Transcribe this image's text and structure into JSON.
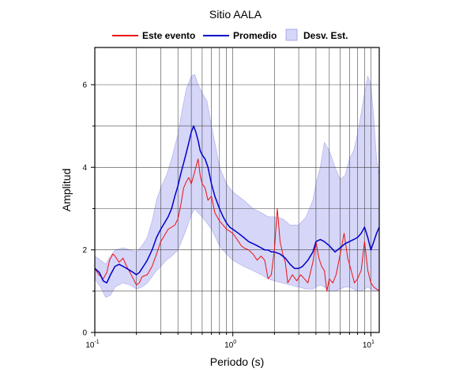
{
  "chart_data": {
    "type": "line",
    "title": "Sitio AALA",
    "xlabel": "Periodo (s)",
    "ylabel": "Amplitud",
    "x_scale": "log",
    "xlim": [
      0.1,
      11.5
    ],
    "ylim": [
      0,
      6.9
    ],
    "x_ticks": [
      {
        "value": 0.1,
        "base": "10",
        "exp": "-1"
      },
      {
        "value": 1,
        "base": "10",
        "exp": "0"
      },
      {
        "value": 10,
        "base": "10",
        "exp": "1"
      }
    ],
    "y_ticks": [
      0,
      2,
      4,
      6
    ],
    "grid": true,
    "legend_position": "top",
    "legend": [
      {
        "key": "event",
        "label": "Este evento",
        "kind": "line"
      },
      {
        "key": "mean",
        "label": "Promedio",
        "kind": "line"
      },
      {
        "key": "std",
        "label": "Desv. Est.",
        "kind": "box"
      }
    ],
    "colors": {
      "event": "#ee1111",
      "mean": "#0000cc",
      "std_fill": "#d6d6f9",
      "std_edge": "#9a9ae6"
    },
    "series": [
      {
        "key": "event",
        "points": [
          [
            0.1,
            1.55
          ],
          [
            0.107,
            1.4
          ],
          [
            0.115,
            1.3
          ],
          [
            0.122,
            1.45
          ],
          [
            0.128,
            1.75
          ],
          [
            0.135,
            1.9
          ],
          [
            0.14,
            1.85
          ],
          [
            0.15,
            1.7
          ],
          [
            0.16,
            1.8
          ],
          [
            0.17,
            1.6
          ],
          [
            0.18,
            1.45
          ],
          [
            0.19,
            1.3
          ],
          [
            0.2,
            1.15
          ],
          [
            0.21,
            1.2
          ],
          [
            0.22,
            1.35
          ],
          [
            0.24,
            1.4
          ],
          [
            0.26,
            1.6
          ],
          [
            0.28,
            1.9
          ],
          [
            0.3,
            2.2
          ],
          [
            0.32,
            2.35
          ],
          [
            0.34,
            2.5
          ],
          [
            0.36,
            2.55
          ],
          [
            0.38,
            2.6
          ],
          [
            0.4,
            2.75
          ],
          [
            0.42,
            3.1
          ],
          [
            0.44,
            3.5
          ],
          [
            0.46,
            3.65
          ],
          [
            0.48,
            3.75
          ],
          [
            0.5,
            3.6
          ],
          [
            0.52,
            3.8
          ],
          [
            0.54,
            4.0
          ],
          [
            0.56,
            4.2
          ],
          [
            0.58,
            3.8
          ],
          [
            0.6,
            3.6
          ],
          [
            0.63,
            3.5
          ],
          [
            0.66,
            3.2
          ],
          [
            0.7,
            3.3
          ],
          [
            0.74,
            2.9
          ],
          [
            0.8,
            2.7
          ],
          [
            0.85,
            2.6
          ],
          [
            0.9,
            2.5
          ],
          [
            0.95,
            2.45
          ],
          [
            1.0,
            2.4
          ],
          [
            1.05,
            2.3
          ],
          [
            1.1,
            2.2
          ],
          [
            1.15,
            2.1
          ],
          [
            1.2,
            2.05
          ],
          [
            1.3,
            2.0
          ],
          [
            1.4,
            1.9
          ],
          [
            1.5,
            1.75
          ],
          [
            1.6,
            1.85
          ],
          [
            1.7,
            1.75
          ],
          [
            1.8,
            1.3
          ],
          [
            1.9,
            1.4
          ],
          [
            2.0,
            2.0
          ],
          [
            2.1,
            3.0
          ],
          [
            2.2,
            2.2
          ],
          [
            2.3,
            1.9
          ],
          [
            2.4,
            1.7
          ],
          [
            2.5,
            1.2
          ],
          [
            2.7,
            1.4
          ],
          [
            2.9,
            1.25
          ],
          [
            3.1,
            1.4
          ],
          [
            3.3,
            1.3
          ],
          [
            3.5,
            1.2
          ],
          [
            3.8,
            1.7
          ],
          [
            4.0,
            2.2
          ],
          [
            4.2,
            1.8
          ],
          [
            4.4,
            1.6
          ],
          [
            4.6,
            1.5
          ],
          [
            4.8,
            1.0
          ],
          [
            5.0,
            1.3
          ],
          [
            5.3,
            1.2
          ],
          [
            5.6,
            1.4
          ],
          [
            6.0,
            1.9
          ],
          [
            6.4,
            2.4
          ],
          [
            6.8,
            1.8
          ],
          [
            7.2,
            1.5
          ],
          [
            7.6,
            1.2
          ],
          [
            8.0,
            1.3
          ],
          [
            8.5,
            1.5
          ],
          [
            9.0,
            2.2
          ],
          [
            9.5,
            1.5
          ],
          [
            10.0,
            1.2
          ],
          [
            10.5,
            1.1
          ],
          [
            11.0,
            1.05
          ],
          [
            11.5,
            1.0
          ]
        ]
      },
      {
        "key": "mean",
        "points": [
          [
            0.1,
            1.55
          ],
          [
            0.108,
            1.45
          ],
          [
            0.115,
            1.25
          ],
          [
            0.122,
            1.2
          ],
          [
            0.13,
            1.4
          ],
          [
            0.14,
            1.6
          ],
          [
            0.15,
            1.65
          ],
          [
            0.16,
            1.6
          ],
          [
            0.17,
            1.55
          ],
          [
            0.18,
            1.5
          ],
          [
            0.19,
            1.45
          ],
          [
            0.2,
            1.4
          ],
          [
            0.21,
            1.45
          ],
          [
            0.22,
            1.55
          ],
          [
            0.23,
            1.65
          ],
          [
            0.24,
            1.75
          ],
          [
            0.26,
            2.0
          ],
          [
            0.28,
            2.3
          ],
          [
            0.3,
            2.5
          ],
          [
            0.32,
            2.65
          ],
          [
            0.34,
            2.8
          ],
          [
            0.36,
            3.0
          ],
          [
            0.38,
            3.3
          ],
          [
            0.4,
            3.55
          ],
          [
            0.42,
            3.85
          ],
          [
            0.44,
            4.1
          ],
          [
            0.46,
            4.35
          ],
          [
            0.48,
            4.6
          ],
          [
            0.5,
            4.85
          ],
          [
            0.52,
            5.0
          ],
          [
            0.54,
            4.85
          ],
          [
            0.56,
            4.65
          ],
          [
            0.58,
            4.4
          ],
          [
            0.6,
            4.3
          ],
          [
            0.63,
            4.2
          ],
          [
            0.66,
            4.0
          ],
          [
            0.7,
            3.6
          ],
          [
            0.74,
            3.3
          ],
          [
            0.8,
            3.0
          ],
          [
            0.85,
            2.8
          ],
          [
            0.9,
            2.65
          ],
          [
            0.95,
            2.55
          ],
          [
            1.0,
            2.5
          ],
          [
            1.1,
            2.4
          ],
          [
            1.2,
            2.3
          ],
          [
            1.3,
            2.2
          ],
          [
            1.4,
            2.15
          ],
          [
            1.5,
            2.1
          ],
          [
            1.6,
            2.05
          ],
          [
            1.7,
            2.0
          ],
          [
            1.8,
            2.0
          ],
          [
            1.9,
            1.95
          ],
          [
            2.0,
            1.95
          ],
          [
            2.2,
            1.9
          ],
          [
            2.4,
            1.8
          ],
          [
            2.6,
            1.65
          ],
          [
            2.8,
            1.55
          ],
          [
            3.0,
            1.55
          ],
          [
            3.2,
            1.6
          ],
          [
            3.5,
            1.75
          ],
          [
            3.8,
            1.95
          ],
          [
            4.0,
            2.2
          ],
          [
            4.3,
            2.25
          ],
          [
            4.6,
            2.2
          ],
          [
            5.0,
            2.1
          ],
          [
            5.5,
            1.95
          ],
          [
            6.0,
            2.05
          ],
          [
            6.5,
            2.15
          ],
          [
            7.0,
            2.2
          ],
          [
            7.5,
            2.25
          ],
          [
            8.0,
            2.3
          ],
          [
            8.5,
            2.4
          ],
          [
            9.0,
            2.55
          ],
          [
            9.5,
            2.3
          ],
          [
            10.0,
            2.0
          ],
          [
            10.5,
            2.2
          ],
          [
            11.0,
            2.4
          ],
          [
            11.5,
            2.55
          ]
        ]
      },
      {
        "key": "std",
        "upper": [
          [
            0.1,
            1.85
          ],
          [
            0.11,
            1.75
          ],
          [
            0.12,
            1.65
          ],
          [
            0.13,
            1.85
          ],
          [
            0.14,
            2.0
          ],
          [
            0.16,
            2.05
          ],
          [
            0.18,
            2.0
          ],
          [
            0.2,
            1.95
          ],
          [
            0.22,
            2.1
          ],
          [
            0.24,
            2.3
          ],
          [
            0.26,
            2.7
          ],
          [
            0.28,
            3.2
          ],
          [
            0.3,
            3.5
          ],
          [
            0.33,
            3.8
          ],
          [
            0.36,
            4.2
          ],
          [
            0.4,
            4.8
          ],
          [
            0.43,
            5.4
          ],
          [
            0.46,
            5.9
          ],
          [
            0.5,
            6.2
          ],
          [
            0.53,
            6.25
          ],
          [
            0.56,
            6.0
          ],
          [
            0.6,
            5.8
          ],
          [
            0.65,
            5.6
          ],
          [
            0.7,
            5.0
          ],
          [
            0.75,
            4.5
          ],
          [
            0.8,
            4.0
          ],
          [
            0.9,
            3.6
          ],
          [
            1.0,
            3.4
          ],
          [
            1.2,
            3.2
          ],
          [
            1.4,
            3.0
          ],
          [
            1.6,
            2.9
          ],
          [
            1.8,
            2.8
          ],
          [
            2.0,
            2.8
          ],
          [
            2.3,
            2.75
          ],
          [
            2.6,
            2.6
          ],
          [
            3.0,
            2.6
          ],
          [
            3.4,
            2.8
          ],
          [
            3.8,
            3.2
          ],
          [
            4.0,
            3.6
          ],
          [
            4.3,
            4.0
          ],
          [
            4.6,
            4.6
          ],
          [
            5.0,
            4.4
          ],
          [
            5.5,
            4.0
          ],
          [
            6.0,
            3.7
          ],
          [
            6.5,
            3.8
          ],
          [
            7.0,
            4.2
          ],
          [
            7.5,
            4.4
          ],
          [
            8.0,
            4.8
          ],
          [
            8.5,
            5.3
          ],
          [
            9.0,
            5.8
          ],
          [
            9.5,
            6.2
          ],
          [
            10.0,
            6.0
          ],
          [
            10.5,
            5.2
          ],
          [
            11.0,
            4.2
          ],
          [
            11.5,
            3.8
          ]
        ],
        "lower": [
          [
            0.1,
            1.3
          ],
          [
            0.11,
            1.1
          ],
          [
            0.12,
            0.85
          ],
          [
            0.13,
            0.9
          ],
          [
            0.14,
            1.1
          ],
          [
            0.16,
            1.2
          ],
          [
            0.18,
            1.15
          ],
          [
            0.2,
            1.05
          ],
          [
            0.22,
            1.1
          ],
          [
            0.24,
            1.2
          ],
          [
            0.26,
            1.35
          ],
          [
            0.28,
            1.5
          ],
          [
            0.3,
            1.6
          ],
          [
            0.33,
            1.75
          ],
          [
            0.36,
            1.85
          ],
          [
            0.4,
            2.0
          ],
          [
            0.43,
            2.25
          ],
          [
            0.46,
            2.5
          ],
          [
            0.5,
            2.85
          ],
          [
            0.53,
            3.0
          ],
          [
            0.56,
            2.9
          ],
          [
            0.6,
            2.8
          ],
          [
            0.65,
            2.65
          ],
          [
            0.7,
            2.5
          ],
          [
            0.75,
            2.3
          ],
          [
            0.8,
            2.1
          ],
          [
            0.9,
            1.9
          ],
          [
            1.0,
            1.75
          ],
          [
            1.2,
            1.6
          ],
          [
            1.4,
            1.5
          ],
          [
            1.6,
            1.4
          ],
          [
            1.8,
            1.3
          ],
          [
            2.0,
            1.25
          ],
          [
            2.3,
            1.2
          ],
          [
            2.6,
            1.15
          ],
          [
            3.0,
            1.1
          ],
          [
            3.4,
            1.05
          ],
          [
            3.8,
            1.05
          ],
          [
            4.0,
            1.1
          ],
          [
            4.3,
            1.15
          ],
          [
            4.6,
            1.1
          ],
          [
            5.0,
            1.0
          ],
          [
            5.5,
            1.0
          ],
          [
            6.0,
            1.05
          ],
          [
            6.5,
            1.1
          ],
          [
            7.0,
            1.1
          ],
          [
            7.5,
            1.05
          ],
          [
            8.0,
            1.0
          ],
          [
            8.5,
            1.0
          ],
          [
            9.0,
            1.05
          ],
          [
            9.5,
            1.1
          ],
          [
            10.0,
            1.05
          ],
          [
            10.5,
            1.0
          ],
          [
            11.0,
            1.0
          ],
          [
            11.5,
            1.05
          ]
        ]
      }
    ]
  }
}
